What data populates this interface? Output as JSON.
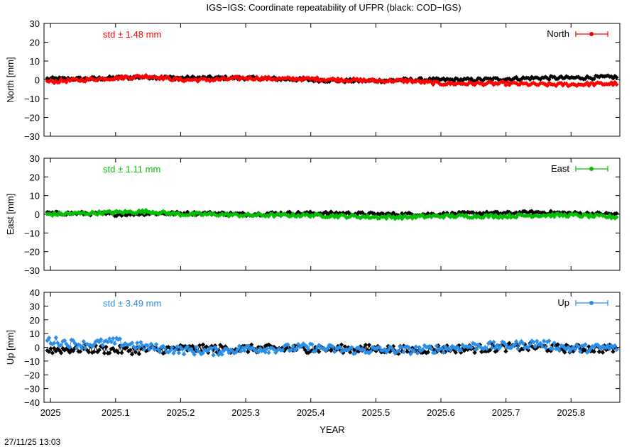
{
  "page": {
    "title": "IGS−IGS: Coordinate repeatability of UFPR (black: COD−IGS)",
    "timestamp": "27/11/25 13:03",
    "xlabel": "YEAR"
  },
  "chart_data": [
    {
      "type": "line",
      "panel": "north",
      "ylabel": "North [mm]",
      "ylim": [
        -30,
        30
      ],
      "yticks": [
        "−30",
        "−20",
        "−10",
        "0",
        "10",
        "20",
        "30"
      ],
      "ytick_values": [
        -30,
        -20,
        -10,
        0,
        10,
        20,
        30
      ],
      "xlim": [
        2024.99,
        2025.875
      ],
      "xticks": [
        "2025",
        "2025.1",
        "2025.2",
        "2025.3",
        "2025.4",
        "2025.5",
        "2025.6",
        "2025.7",
        "2025.8"
      ],
      "xtick_values": [
        2025.0,
        2025.1,
        2025.2,
        2025.3,
        2025.4,
        2025.5,
        2025.6,
        2025.7,
        2025.8
      ],
      "std_label": "std ± 1.48 mm",
      "legend": "top-right",
      "grid": false,
      "series": [
        {
          "name": "North",
          "color": "#ff0000",
          "x": [
            2024.995,
            2025.05,
            2025.1,
            2025.15,
            2025.2,
            2025.25,
            2025.3,
            2025.35,
            2025.4,
            2025.45,
            2025.5,
            2025.55,
            2025.6,
            2025.65,
            2025.7,
            2025.75,
            2025.8,
            2025.87
          ],
          "values": [
            -1,
            0,
            1,
            2,
            0,
            0,
            1,
            0.5,
            0.5,
            0,
            -0.5,
            -0.5,
            -2,
            -2,
            -2,
            -2.5,
            -2.5,
            -2
          ]
        },
        {
          "color": "#000000",
          "x": [
            2024.995,
            2025.05,
            2025.1,
            2025.15,
            2025.2,
            2025.25,
            2025.3,
            2025.35,
            2025.4,
            2025.45,
            2025.5,
            2025.55,
            2025.6,
            2025.65,
            2025.7,
            2025.75,
            2025.8,
            2025.87
          ],
          "values": [
            0.5,
            0.5,
            1,
            1.5,
            1,
            1,
            1,
            0.5,
            0,
            -0.5,
            -0.5,
            0,
            0,
            0,
            0.5,
            1,
            1,
            1.5
          ]
        }
      ]
    },
    {
      "type": "line",
      "panel": "east",
      "ylabel": "East [mm]",
      "ylim": [
        -30,
        30
      ],
      "yticks": [
        "−30",
        "−20",
        "−10",
        "0",
        "10",
        "20",
        "30"
      ],
      "ytick_values": [
        -30,
        -20,
        -10,
        0,
        10,
        20,
        30
      ],
      "xlim": [
        2024.99,
        2025.875
      ],
      "xticks": [
        "2025",
        "2025.1",
        "2025.2",
        "2025.3",
        "2025.4",
        "2025.5",
        "2025.6",
        "2025.7",
        "2025.8"
      ],
      "xtick_values": [
        2025.0,
        2025.1,
        2025.2,
        2025.3,
        2025.4,
        2025.5,
        2025.6,
        2025.7,
        2025.8
      ],
      "std_label": "std ± 1.11 mm",
      "legend": "top-right",
      "grid": false,
      "series": [
        {
          "name": "East",
          "color": "#00c000",
          "x": [
            2024.995,
            2025.05,
            2025.1,
            2025.15,
            2025.2,
            2025.25,
            2025.3,
            2025.35,
            2025.4,
            2025.45,
            2025.5,
            2025.55,
            2025.6,
            2025.65,
            2025.7,
            2025.75,
            2025.8,
            2025.87
          ],
          "values": [
            0,
            0.5,
            1,
            1.5,
            0,
            0,
            -0.5,
            -0.5,
            -0.5,
            -1,
            -1.5,
            -1.5,
            -1,
            -1,
            -1,
            -0.5,
            -0.5,
            -1.5
          ]
        },
        {
          "color": "#000000",
          "x": [
            2024.995,
            2025.05,
            2025.1,
            2025.15,
            2025.2,
            2025.25,
            2025.3,
            2025.35,
            2025.4,
            2025.45,
            2025.5,
            2025.55,
            2025.6,
            2025.65,
            2025.7,
            2025.75,
            2025.8,
            2025.87
          ],
          "values": [
            0.5,
            0.5,
            0,
            0.5,
            0.5,
            0.5,
            0,
            0.5,
            0.5,
            0.5,
            0,
            0,
            0,
            0.5,
            0.5,
            1,
            0.5,
            0
          ]
        }
      ]
    },
    {
      "type": "line",
      "panel": "up",
      "ylabel": "Up [mm]",
      "ylim": [
        -40,
        40
      ],
      "yticks": [
        "−40",
        "−30",
        "−20",
        "−10",
        "0",
        "10",
        "20",
        "30",
        "40"
      ],
      "ytick_values": [
        -40,
        -30,
        -20,
        -10,
        0,
        10,
        20,
        30,
        40
      ],
      "xlim": [
        2024.99,
        2025.875
      ],
      "xticks": [
        "2025",
        "2025.1",
        "2025.2",
        "2025.3",
        "2025.4",
        "2025.5",
        "2025.6",
        "2025.7",
        "2025.8"
      ],
      "xtick_values": [
        2025.0,
        2025.1,
        2025.2,
        2025.3,
        2025.4,
        2025.5,
        2025.6,
        2025.7,
        2025.8
      ],
      "std_label": "std ± 3.49 mm",
      "legend": "top-right",
      "grid": false,
      "series": [
        {
          "name": "Up",
          "color": "#2a8fe8",
          "x": [
            2024.995,
            2025.05,
            2025.1,
            2025.15,
            2025.2,
            2025.25,
            2025.3,
            2025.35,
            2025.4,
            2025.45,
            2025.5,
            2025.55,
            2025.6,
            2025.65,
            2025.7,
            2025.75,
            2025.8,
            2025.87
          ],
          "values": [
            5,
            2,
            4,
            0,
            -2,
            -3,
            -1,
            -1,
            0,
            -2,
            -2,
            -2,
            -1,
            1,
            1,
            3,
            -1,
            0
          ]
        },
        {
          "color": "#000000",
          "x": [
            2024.995,
            2025.05,
            2025.1,
            2025.15,
            2025.2,
            2025.25,
            2025.3,
            2025.35,
            2025.4,
            2025.45,
            2025.5,
            2025.55,
            2025.6,
            2025.65,
            2025.7,
            2025.75,
            2025.8,
            2025.87
          ],
          "values": [
            -2,
            -1,
            -2,
            -2,
            -1,
            -1,
            -1,
            -1,
            -1,
            -1,
            -1,
            -2,
            -1,
            -1,
            0,
            0,
            -1,
            -1
          ]
        }
      ]
    }
  ]
}
